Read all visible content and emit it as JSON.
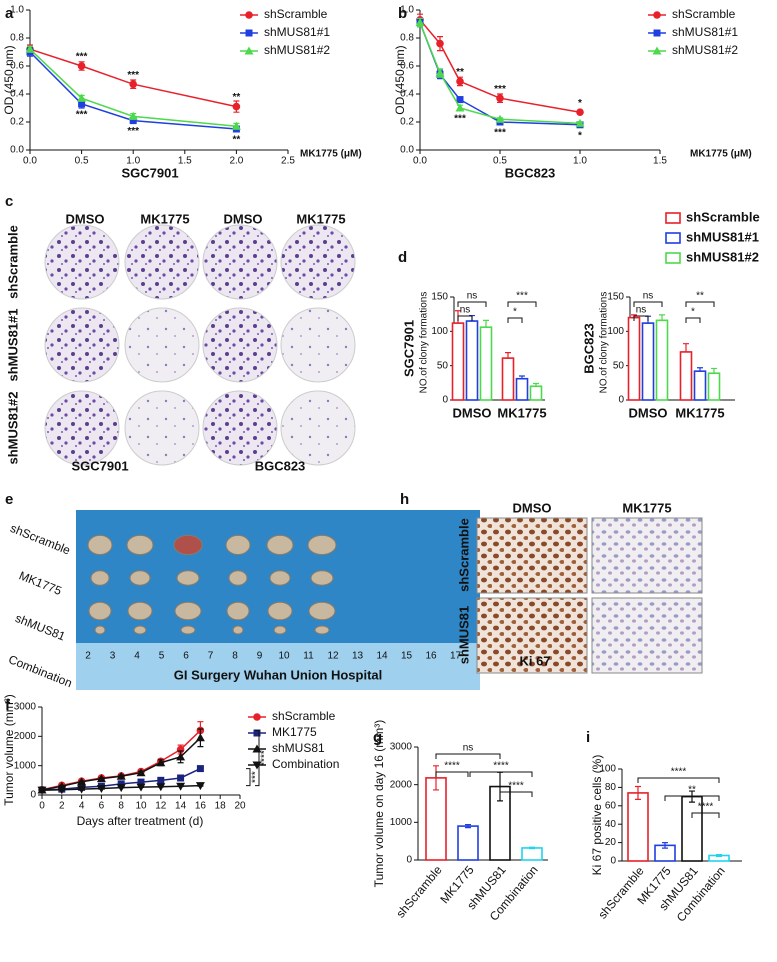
{
  "chart_data": [
    {
      "panel": "a",
      "type": "line",
      "x": [
        0,
        0.5,
        1,
        2
      ],
      "xlim": [
        0,
        2.5
      ],
      "xticks": [
        {
          "value": 0,
          "label": "0.0"
        },
        0.5,
        {
          "value": 1,
          "label": "1.0"
        },
        1.5,
        {
          "value": 2,
          "label": "2.0"
        },
        2.5
      ],
      "ylim": [
        0,
        1
      ],
      "yticks": [
        {
          "value": 0,
          "label": "0.0"
        },
        0.2,
        0.4,
        0.6,
        0.8,
        {
          "value": 1,
          "label": "1.0"
        }
      ],
      "x_label": "SGC7901",
      "x_unit_label": "MK1775 (μM)",
      "y_label": "OD (450 nm)",
      "series": [
        {
          "name": "shScramble",
          "color": "#e8202a",
          "marker": "circle",
          "values": [
            0.72,
            0.6,
            0.47,
            0.31
          ],
          "errors": [
            0.03,
            0.03,
            0.03,
            0.04
          ]
        },
        {
          "name": "shMUS81#1",
          "color": "#1f3fe0",
          "marker": "square",
          "values": [
            0.7,
            0.33,
            0.21,
            0.15
          ],
          "errors": [
            0.03,
            0.03,
            0.02,
            0.02
          ]
        },
        {
          "name": "shMUS81#2",
          "color": "#4cd94c",
          "marker": "triangle",
          "values": [
            0.72,
            0.37,
            0.24,
            0.17
          ],
          "errors": [
            0.02,
            0.02,
            0.02,
            0.02
          ]
        }
      ],
      "significance_above": [
        null,
        "***",
        "***",
        "**"
      ],
      "significance_below": [
        null,
        "***",
        "***",
        "**"
      ]
    },
    {
      "panel": "b",
      "type": "line",
      "x": [
        0,
        0.125,
        0.25,
        0.5,
        1
      ],
      "xlim": [
        0,
        1.5
      ],
      "xticks": [
        {
          "value": 0,
          "label": "0.0"
        },
        0.5,
        {
          "value": 1,
          "label": "1.0"
        },
        1.5
      ],
      "ylim": [
        0,
        1
      ],
      "yticks": [
        {
          "value": 0,
          "label": "0.0"
        },
        0.2,
        0.4,
        0.6,
        0.8,
        {
          "value": 1,
          "label": "1.0"
        }
      ],
      "x_label": "BGC823",
      "x_unit_label": "MK1775 (μM)",
      "y_label": "OD (450 nm)",
      "series": [
        {
          "name": "shScramble",
          "color": "#e8202a",
          "marker": "circle",
          "values": [
            0.93,
            0.76,
            0.49,
            0.37,
            0.27
          ],
          "errors": [
            0.04,
            0.05,
            0.03,
            0.03,
            0.01
          ]
        },
        {
          "name": "shMUS81#1",
          "color": "#1f3fe0",
          "marker": "square",
          "values": [
            0.91,
            0.54,
            0.36,
            0.2,
            0.18
          ],
          "errors": [
            0.03,
            0.03,
            0.02,
            0.01,
            0.01
          ]
        },
        {
          "name": "shMUS81#2",
          "color": "#4cd94c",
          "marker": "triangle",
          "values": [
            0.91,
            0.55,
            0.3,
            0.22,
            0.19
          ],
          "errors": [
            0.03,
            0.03,
            0.02,
            0.01,
            0.01
          ]
        }
      ],
      "significance_above": [
        null,
        null,
        "**",
        "***",
        "*"
      ],
      "significance_below": [
        null,
        null,
        "***",
        "***",
        "*"
      ]
    },
    {
      "panel": "d",
      "type": "groupbar",
      "categories": [
        "DMSO",
        "MK1775"
      ],
      "ylim": [
        0,
        150
      ],
      "yticks": [
        0,
        50,
        100,
        150
      ],
      "y_title": "SGC7901",
      "y_label": "NO.of clony formations",
      "series": [
        {
          "name": "shScramble",
          "color": "#e8202a",
          "values": [
            112,
            61
          ],
          "errors": [
            18,
            8
          ]
        },
        {
          "name": "shMUS81#1",
          "color": "#1f3fe0",
          "values": [
            115,
            31
          ],
          "errors": [
            8,
            4
          ]
        },
        {
          "name": "shMUS81#2",
          "color": "#4cd94c",
          "values": [
            106,
            20
          ],
          "errors": [
            10,
            4
          ]
        }
      ],
      "brackets": [
        "ns",
        "ns",
        "***",
        "*"
      ]
    },
    {
      "type": "groupbar",
      "categories": [
        "DMSO",
        "MK1775"
      ],
      "ylim": [
        0,
        150
      ],
      "yticks": [
        0,
        50,
        100,
        150
      ],
      "y_title": "BGC823",
      "y_label": "NO.of clony formations",
      "series": [
        {
          "color": "#e8202a",
          "values": [
            120,
            70
          ],
          "errors": [
            4,
            12
          ]
        },
        {
          "color": "#1f3fe0",
          "values": [
            112,
            42
          ],
          "errors": [
            10,
            5
          ]
        },
        {
          "color": "#4cd94c",
          "values": [
            116,
            39
          ],
          "errors": [
            8,
            7
          ]
        }
      ],
      "brackets": [
        "ns",
        "ns",
        "**",
        "*"
      ]
    },
    {
      "panel": "f",
      "type": "line",
      "x": [
        0,
        2,
        4,
        6,
        8,
        10,
        12,
        14,
        16
      ],
      "xlim": [
        0,
        20
      ],
      "xticks": [
        0,
        2,
        4,
        6,
        8,
        10,
        12,
        14,
        16,
        18,
        20
      ],
      "ylim": [
        0,
        3000
      ],
      "yticks": [
        0,
        1000,
        2000,
        3000
      ],
      "x_label": "Days after treatment (d)",
      "y_label": "Tumor volume (mm³)",
      "series": [
        {
          "name": "shScramble",
          "color": "#e8202a",
          "marker": "circle",
          "values": [
            180,
            330,
            470,
            580,
            650,
            800,
            1150,
            1550,
            2200
          ],
          "errors": [
            20,
            30,
            30,
            30,
            40,
            50,
            80,
            150,
            300
          ]
        },
        {
          "name": "MK1775",
          "color": "#1a237e",
          "marker": "square",
          "values": [
            170,
            200,
            260,
            300,
            380,
            440,
            500,
            580,
            900
          ],
          "errors": [
            10,
            10,
            10,
            15,
            20,
            20,
            30,
            40,
            40
          ]
        },
        {
          "name": "shMUS81",
          "color": "#111111",
          "marker": "triangle",
          "values": [
            170,
            300,
            450,
            560,
            640,
            760,
            1100,
            1300,
            1950
          ],
          "errors": [
            20,
            30,
            30,
            30,
            40,
            50,
            100,
            200,
            300
          ]
        },
        {
          "name": "Combination",
          "color": "#111111",
          "marker": "triangle-down",
          "values": [
            160,
            180,
            200,
            220,
            250,
            270,
            280,
            300,
            320
          ],
          "errors": [
            10,
            10,
            10,
            10,
            10,
            10,
            10,
            10,
            20
          ]
        }
      ],
      "annotations": [
        "***",
        "****"
      ]
    },
    {
      "panel": "g",
      "type": "bar",
      "categories": [
        "shScramble",
        "MK1775",
        "shMUS81",
        "Combination"
      ],
      "values": [
        2180,
        900,
        1950,
        320
      ],
      "errors": [
        320,
        40,
        380,
        20
      ],
      "colors": [
        "#e8202a",
        "#1f3fe0",
        "#111111",
        "#22d3ee"
      ],
      "ylim": [
        0,
        3000
      ],
      "yticks": [
        0,
        1000,
        2000,
        3000
      ],
      "y_label": "Tumor volume on day 16 (mm³)",
      "brackets": [
        "ns",
        "****",
        "****",
        "****"
      ]
    },
    {
      "panel": "i",
      "type": "bar",
      "categories": [
        "shScramble",
        "MK1775",
        "shMUS81",
        "Combination"
      ],
      "values": [
        74,
        17,
        70,
        6
      ],
      "errors": [
        7,
        3,
        6,
        1
      ],
      "colors": [
        "#e8202a",
        "#1f3fe0",
        "#111111",
        "#22d3ee"
      ],
      "ylim": [
        0,
        100
      ],
      "yticks": [
        0,
        20,
        40,
        60,
        80,
        100
      ],
      "y_label": "Ki 67 positive cells (%)",
      "brackets": [
        "****",
        "**",
        "****"
      ]
    }
  ],
  "image_panels": [
    {
      "panel": "c",
      "columns": [
        "DMSO",
        "MK1775",
        "DMSO",
        "MK1775"
      ],
      "rows": [
        "shScramble",
        "shMUS81#1",
        "shMUS81#2"
      ],
      "captions": [
        "SGC7901",
        "BGC823"
      ]
    },
    {
      "panel": "e",
      "rows": [
        "shScramble",
        "MK1775",
        "shMUS81",
        "Combination"
      ],
      "ruler_ticks": [
        2,
        3,
        4,
        5,
        6,
        7,
        8,
        9,
        10,
        11,
        12,
        13,
        14,
        15,
        16,
        17
      ],
      "ruler_text": "GI Surgery Wuhan Union Hospital"
    },
    {
      "panel": "h",
      "columns": [
        "DMSO",
        "MK1775"
      ],
      "rows": [
        "shScramble",
        "shMUS81"
      ],
      "captions": [
        "Ki 67"
      ]
    }
  ]
}
